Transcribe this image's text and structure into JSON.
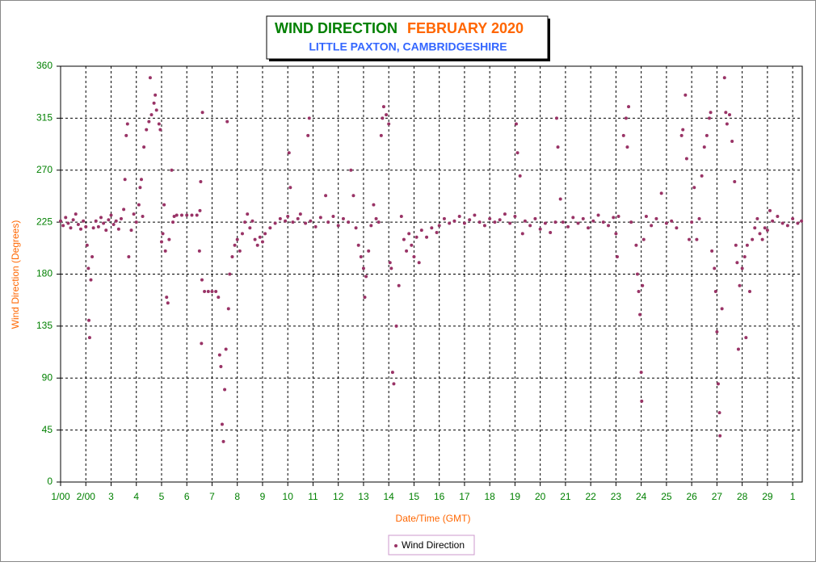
{
  "chart_data": {
    "type": "scatter",
    "title": "WIND DIRECTION",
    "title_period": "FEBRUARY 2020",
    "subtitle": "LITTLE PAXTON, CAMBRIDGESHIRE",
    "x_label": "Date/Time (GMT)",
    "y_label": "Wind Direction (Degrees)",
    "xlim": [
      1,
      30.38
    ],
    "ylim": [
      0,
      360
    ],
    "xticks": [
      {
        "value": 1,
        "label": "1/00"
      },
      {
        "value": 2,
        "label": "2/00"
      },
      3,
      4,
      5,
      6,
      7,
      8,
      9,
      10,
      11,
      12,
      13,
      14,
      15,
      16,
      17,
      18,
      19,
      20,
      21,
      22,
      23,
      24,
      25,
      26,
      27,
      28,
      29,
      {
        "value": 30,
        "label": "1"
      }
    ],
    "yticks": [
      0,
      45,
      90,
      135,
      180,
      225,
      270,
      315,
      360
    ],
    "grid": true,
    "legend": "bottom",
    "series": [
      {
        "name": "Wind Direction",
        "color": "#993366",
        "x": [
          1.0,
          1.1,
          1.2,
          1.3,
          1.4,
          1.5,
          1.6,
          1.7,
          1.8,
          1.9,
          2.0,
          2.05,
          2.1,
          2.12,
          2.15,
          2.2,
          2.25,
          2.3,
          2.4,
          2.5,
          2.6,
          2.7,
          2.8,
          2.9,
          3.0,
          3.1,
          3.2,
          3.3,
          3.4,
          3.5,
          3.55,
          3.6,
          3.65,
          3.7,
          3.8,
          3.9,
          4.0,
          4.1,
          4.15,
          4.2,
          4.25,
          4.3,
          4.4,
          4.5,
          4.55,
          4.6,
          4.7,
          4.75,
          4.8,
          4.9,
          4.95,
          5.0,
          5.05,
          5.1,
          5.15,
          5.2,
          5.25,
          5.3,
          5.4,
          5.45,
          5.5,
          5.6,
          5.8,
          6.0,
          6.2,
          6.4,
          6.5,
          6.52,
          6.55,
          6.58,
          6.6,
          6.62,
          6.7,
          6.85,
          7.0,
          7.15,
          7.25,
          7.3,
          7.35,
          7.4,
          7.45,
          7.5,
          7.55,
          7.6,
          7.65,
          7.7,
          7.8,
          7.9,
          8.0,
          8.1,
          8.2,
          8.3,
          8.4,
          8.5,
          8.6,
          8.7,
          8.8,
          8.9,
          9.0,
          9.1,
          9.3,
          9.5,
          9.7,
          9.9,
          10.0,
          10.05,
          10.1,
          10.2,
          10.4,
          10.5,
          10.7,
          10.8,
          10.85,
          10.9,
          11.1,
          11.3,
          11.5,
          11.6,
          11.8,
          12.0,
          12.2,
          12.4,
          12.5,
          12.6,
          12.7,
          12.8,
          12.9,
          13.0,
          13.05,
          13.1,
          13.2,
          13.3,
          13.4,
          13.5,
          13.6,
          13.7,
          13.75,
          13.8,
          13.9,
          14.0,
          14.05,
          14.1,
          14.15,
          14.2,
          14.3,
          14.4,
          14.5,
          14.6,
          14.7,
          14.8,
          14.9,
          15.0,
          15.1,
          15.2,
          15.3,
          15.5,
          15.7,
          15.9,
          16.0,
          16.2,
          16.4,
          16.6,
          16.8,
          17.0,
          17.2,
          17.4,
          17.6,
          17.8,
          18.0,
          18.2,
          18.4,
          18.6,
          18.8,
          19.0,
          19.05,
          19.1,
          19.2,
          19.3,
          19.4,
          19.6,
          19.8,
          20.0,
          20.2,
          20.4,
          20.6,
          20.65,
          20.7,
          20.8,
          20.9,
          21.1,
          21.3,
          21.5,
          21.7,
          21.9,
          22.1,
          22.3,
          22.5,
          22.7,
          22.9,
          23.0,
          23.05,
          23.1,
          23.3,
          23.4,
          23.45,
          23.5,
          23.6,
          23.8,
          23.85,
          23.9,
          23.95,
          24.0,
          24.02,
          24.05,
          24.1,
          24.2,
          24.4,
          24.6,
          24.8,
          25.0,
          25.2,
          25.4,
          25.6,
          25.65,
          25.75,
          25.8,
          25.9,
          26.0,
          26.1,
          26.2,
          26.3,
          26.4,
          26.5,
          26.6,
          26.7,
          26.75,
          26.8,
          26.9,
          26.95,
          27.0,
          27.05,
          27.1,
          27.12,
          27.2,
          27.3,
          27.35,
          27.4,
          27.5,
          27.6,
          27.7,
          27.75,
          27.8,
          27.85,
          27.9,
          28.0,
          28.1,
          28.15,
          28.2,
          28.3,
          28.4,
          28.5,
          28.6,
          28.7,
          28.8,
          28.9,
          29.0,
          29.1,
          29.2,
          29.4,
          29.6,
          29.8,
          30.0,
          30.2,
          30.35
        ],
        "values": [
          226,
          222,
          229,
          224,
          220,
          227,
          232,
          223,
          219,
          226,
          221,
          205,
          185,
          140,
          125,
          175,
          195,
          220,
          226,
          221,
          229,
          224,
          218,
          227,
          231,
          223,
          226,
          219,
          228,
          236,
          262,
          300,
          310,
          195,
          218,
          232,
          225,
          240,
          255,
          262,
          230,
          290,
          305,
          312,
          350,
          318,
          328,
          335,
          322,
          310,
          305,
          208,
          215,
          240,
          200,
          160,
          155,
          210,
          270,
          225,
          230,
          231,
          231,
          231,
          231,
          231,
          200,
          235,
          260,
          120,
          175,
          320,
          165,
          165,
          165,
          165,
          160,
          110,
          100,
          50,
          35,
          80,
          115,
          312,
          150,
          180,
          195,
          205,
          210,
          200,
          215,
          225,
          232,
          220,
          226,
          210,
          205,
          212,
          208,
          215,
          220,
          224,
          228,
          226,
          230,
          285,
          255,
          225,
          228,
          232,
          224,
          300,
          315,
          226,
          221,
          229,
          248,
          225,
          230,
          222,
          228,
          225,
          270,
          248,
          220,
          205,
          195,
          185,
          160,
          178,
          200,
          222,
          240,
          228,
          225,
          300,
          315,
          325,
          318,
          310,
          190,
          185,
          95,
          85,
          135,
          170,
          230,
          210,
          200,
          215,
          205,
          195,
          212,
          190,
          218,
          212,
          220,
          216,
          222,
          228,
          224,
          226,
          230,
          224,
          227,
          231,
          225,
          222,
          228,
          225,
          227,
          232,
          224,
          230,
          310,
          285,
          265,
          215,
          226,
          222,
          228,
          219,
          224,
          216,
          225,
          315,
          290,
          245,
          225,
          221,
          229,
          224,
          228,
          220,
          226,
          231,
          225,
          222,
          229,
          215,
          195,
          230,
          300,
          315,
          290,
          325,
          225,
          205,
          180,
          165,
          145,
          95,
          70,
          170,
          210,
          230,
          222,
          228,
          250,
          224,
          226,
          220,
          300,
          305,
          335,
          280,
          210,
          225,
          255,
          210,
          228,
          265,
          290,
          300,
          315,
          320,
          200,
          185,
          165,
          130,
          85,
          60,
          40,
          150,
          350,
          320,
          310,
          318,
          295,
          260,
          205,
          190,
          115,
          170,
          185,
          195,
          125,
          205,
          165,
          210,
          220,
          228,
          215,
          210,
          220,
          218,
          235,
          226,
          230,
          224,
          222,
          228,
          224,
          226
        ]
      }
    ]
  }
}
